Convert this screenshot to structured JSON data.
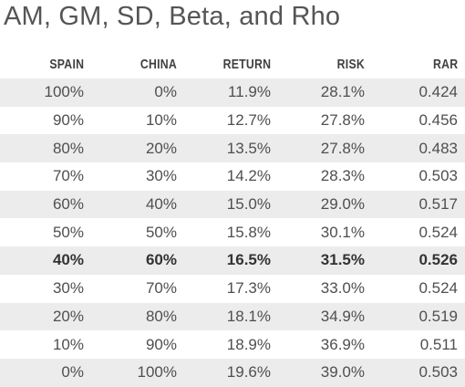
{
  "title": "AM, GM, SD, Beta, and Rho",
  "table": {
    "headers": [
      "SPAIN",
      "CHINA",
      "RETURN",
      "RISK",
      "RAR"
    ],
    "rows": [
      [
        "100%",
        "0%",
        "11.9%",
        "28.1%",
        "0.424"
      ],
      [
        "90%",
        "10%",
        "12.7%",
        "27.8%",
        "0.456"
      ],
      [
        "80%",
        "20%",
        "13.5%",
        "27.8%",
        "0.483"
      ],
      [
        "70%",
        "30%",
        "14.2%",
        "28.3%",
        "0.503"
      ],
      [
        "60%",
        "40%",
        "15.0%",
        "29.0%",
        "0.517"
      ],
      [
        "50%",
        "50%",
        "15.8%",
        "30.1%",
        "0.524"
      ],
      [
        "40%",
        "60%",
        "16.5%",
        "31.5%",
        "0.526"
      ],
      [
        "30%",
        "70%",
        "17.3%",
        "33.0%",
        "0.524"
      ],
      [
        "20%",
        "80%",
        "18.1%",
        "34.9%",
        "0.519"
      ],
      [
        "10%",
        "90%",
        "18.9%",
        "36.9%",
        "0.511"
      ],
      [
        "0%",
        "100%",
        "19.6%",
        "39.0%",
        "0.503"
      ]
    ],
    "highlight_row": 6,
    "stripe_color": "#ececec"
  }
}
